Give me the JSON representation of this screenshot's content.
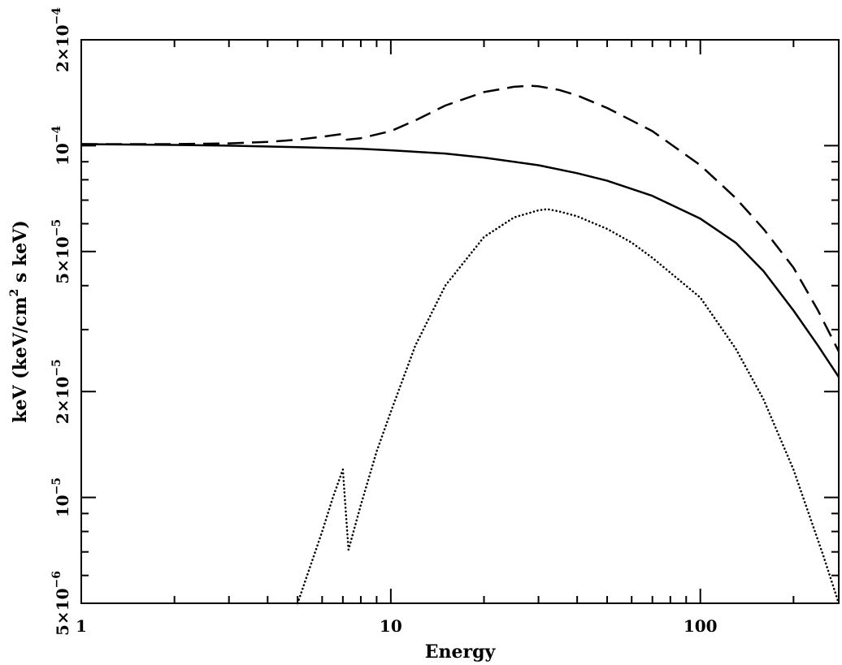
{
  "chart_data": {
    "type": "line",
    "title": "",
    "xlabel": "Energy",
    "ylabel_parts": [
      "keV (keV/cm",
      "2",
      " s keV)"
    ],
    "x_scale": "log",
    "y_scale": "log",
    "xlim": [
      1,
      280
    ],
    "ylim": [
      5e-06,
      0.0002
    ],
    "grid": false,
    "legend": "none",
    "x_ticks": [
      {
        "value": 1,
        "label": "1"
      },
      {
        "value": 10,
        "label": "10"
      },
      {
        "value": 100,
        "label": "100"
      }
    ],
    "y_ticks": [
      {
        "value": 5e-06,
        "mantissa": "5×10",
        "exp": "−6"
      },
      {
        "value": 1e-05,
        "mantissa": "10",
        "exp": "−5"
      },
      {
        "value": 2e-05,
        "mantissa": "2×10",
        "exp": "−5"
      },
      {
        "value": 5e-05,
        "mantissa": "5×10",
        "exp": "−5"
      },
      {
        "value": 0.0001,
        "mantissa": "10",
        "exp": "−4"
      },
      {
        "value": 0.0002,
        "mantissa": "2×10",
        "exp": "−4"
      }
    ],
    "series": [
      {
        "style": "solid",
        "color": "#000000",
        "x": [
          1,
          2,
          3,
          5,
          8,
          10,
          15,
          20,
          30,
          40,
          50,
          70,
          100,
          130,
          160,
          200,
          240,
          280
        ],
        "y": [
          0.000101,
          0.0001005,
          0.0001,
          9.9e-05,
          9.8e-05,
          9.7e-05,
          9.5e-05,
          9.25e-05,
          8.8e-05,
          8.35e-05,
          7.95e-05,
          7.2e-05,
          6.2e-05,
          5.3e-05,
          4.4e-05,
          3.4e-05,
          2.7e-05,
          2.2e-05
        ]
      },
      {
        "style": "dashed",
        "color": "#000000",
        "x": [
          1,
          2,
          3,
          4,
          5,
          6,
          7,
          7.2,
          8,
          10,
          12,
          15,
          20,
          25,
          28,
          30,
          35,
          40,
          50,
          70,
          100,
          130,
          160,
          200,
          240,
          280
        ],
        "y": [
          0.000101,
          0.000101,
          0.0001015,
          0.0001025,
          0.000104,
          0.000106,
          0.000108,
          0.000104,
          0.000105,
          0.00011,
          0.000118,
          0.00013,
          0.000142,
          0.000147,
          0.000148,
          0.0001475,
          0.000144,
          0.000139,
          0.000128,
          0.00011,
          8.8e-05,
          7.1e-05,
          5.8e-05,
          4.5e-05,
          3.4e-05,
          2.6e-05
        ]
      },
      {
        "style": "dotted",
        "color": "#000000",
        "x": [
          5,
          6,
          6.5,
          7,
          7.1,
          7.3,
          8,
          9,
          10,
          12,
          15,
          20,
          25,
          30,
          32,
          35,
          40,
          50,
          60,
          70,
          100,
          130,
          160,
          200,
          250,
          280
        ],
        "y": [
          5e-06,
          8e-06,
          1e-05,
          1.2e-05,
          1e-05,
          7.1e-06,
          9.5e-06,
          1.35e-05,
          1.75e-05,
          2.7e-05,
          4e-05,
          5.5e-05,
          6.25e-05,
          6.55e-05,
          6.6e-05,
          6.5e-05,
          6.3e-05,
          5.8e-05,
          5.3e-05,
          4.8e-05,
          3.7e-05,
          2.65e-05,
          1.9e-05,
          1.2e-05,
          6.8e-06,
          5e-06
        ]
      }
    ]
  }
}
